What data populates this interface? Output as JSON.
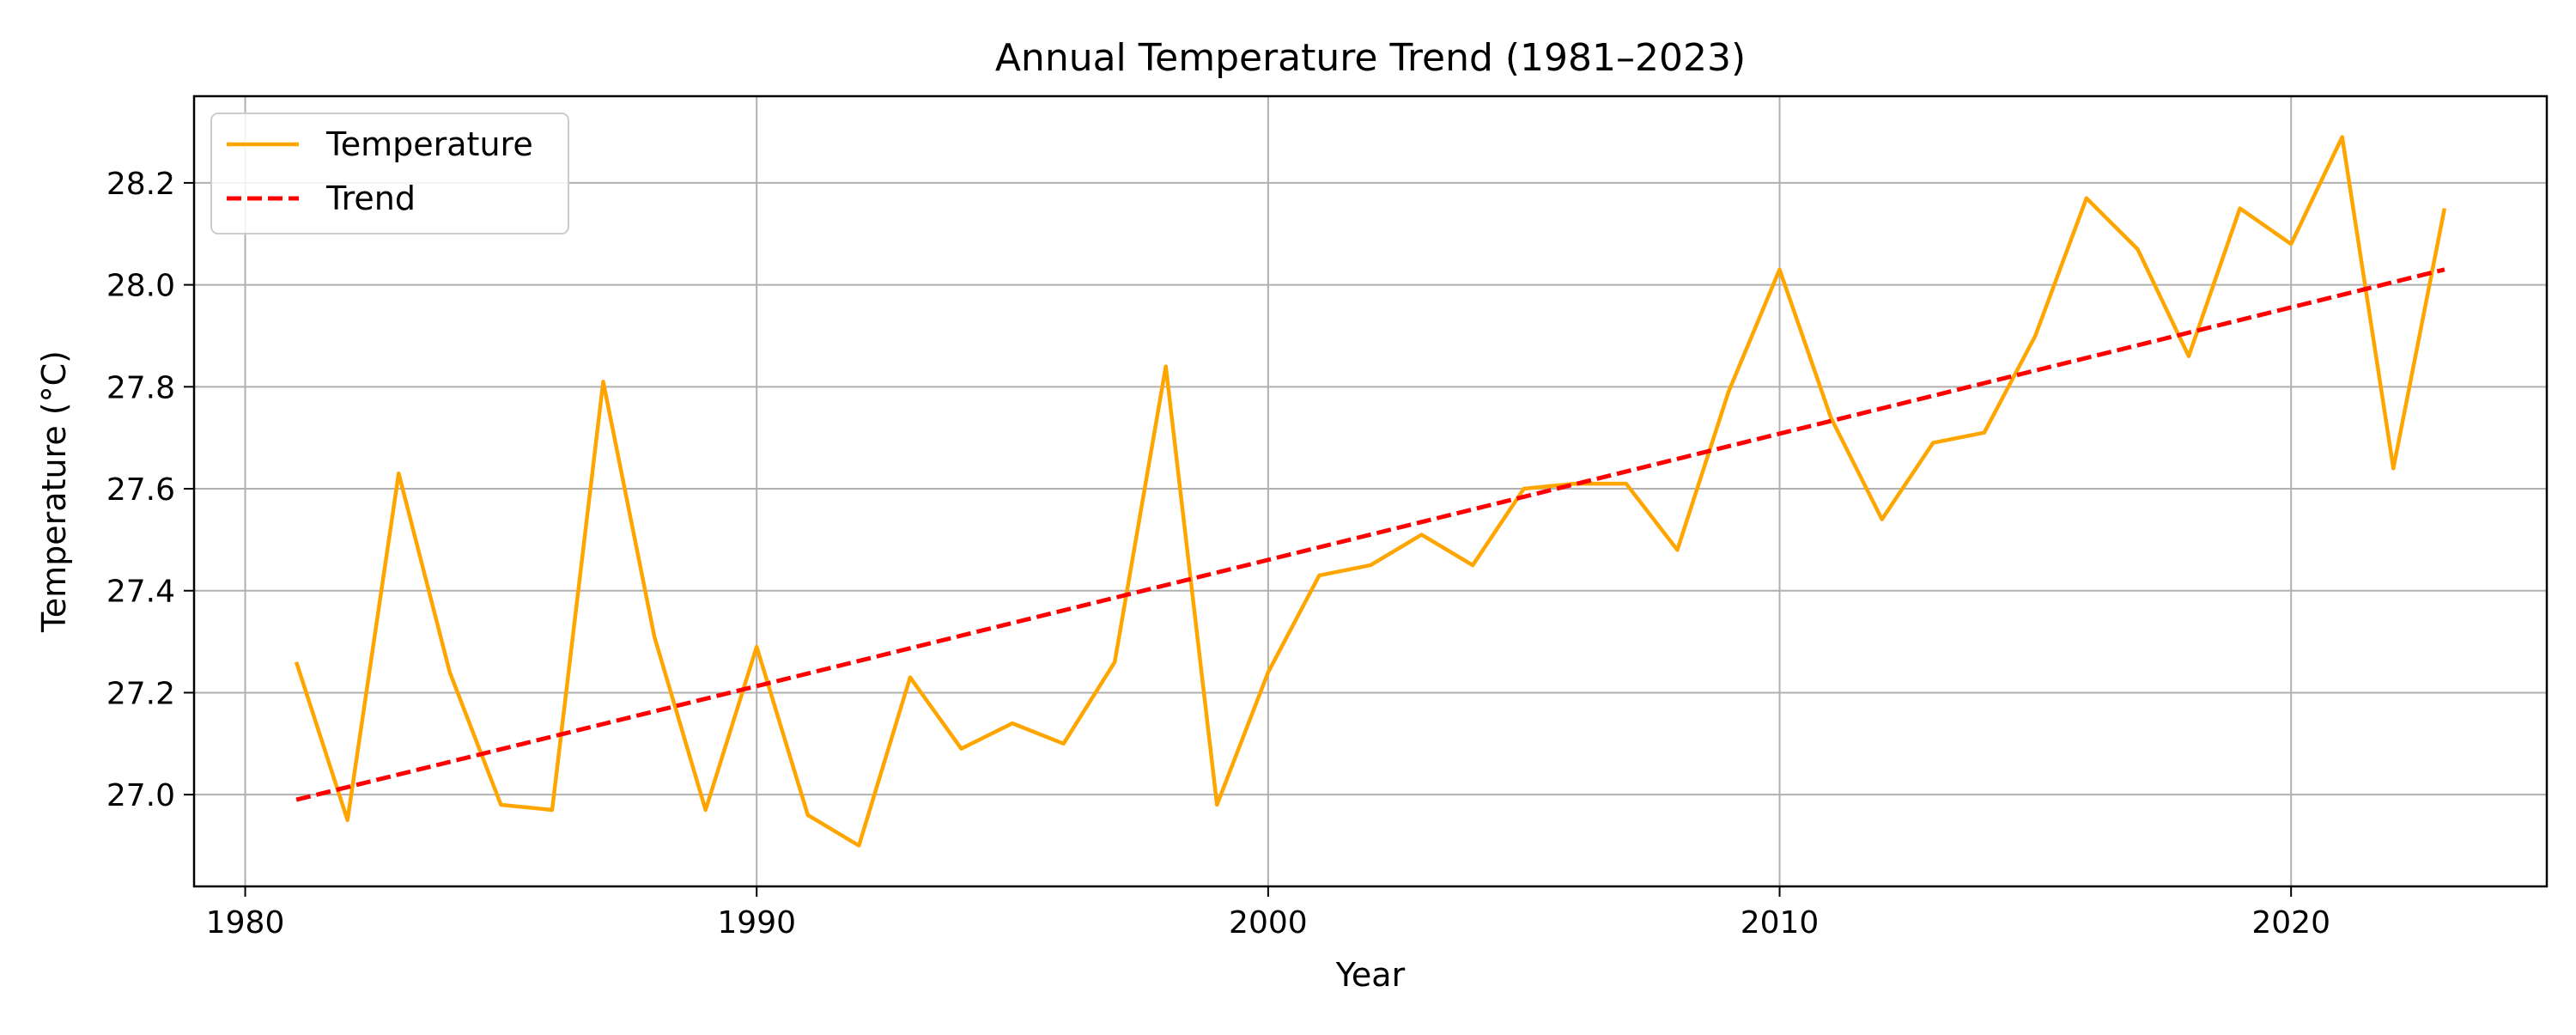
{
  "chart_data": {
    "type": "line",
    "title": "Annual Temperature Trend (1981–2023)",
    "xlabel": "Year",
    "ylabel": "Temperature (°C)",
    "xlim": [
      1979,
      2025
    ],
    "ylim": [
      26.82,
      28.37
    ],
    "xticks": [
      1980,
      1990,
      2000,
      2010,
      2020
    ],
    "xtick_labels": [
      "1980",
      "1990",
      "2000",
      "2010",
      "2020"
    ],
    "yticks": [
      27.0,
      27.2,
      27.4,
      27.6,
      27.8,
      28.0,
      28.2
    ],
    "ytick_labels": [
      "27.0",
      "27.2",
      "27.4",
      "27.6",
      "27.8",
      "28.0",
      "28.2"
    ],
    "grid": true,
    "legend_position": "top-left",
    "x": [
      1981,
      1982,
      1983,
      1984,
      1985,
      1986,
      1987,
      1988,
      1989,
      1990,
      1991,
      1992,
      1993,
      1994,
      1995,
      1996,
      1997,
      1998,
      1999,
      2000,
      2001,
      2002,
      2003,
      2004,
      2005,
      2006,
      2007,
      2008,
      2009,
      2010,
      2011,
      2012,
      2013,
      2014,
      2015,
      2016,
      2017,
      2018,
      2019,
      2020,
      2021,
      2022,
      2023
    ],
    "series": [
      {
        "name": "Temperature",
        "color": "#FFA500",
        "style": "solid",
        "values": [
          27.26,
          26.95,
          27.63,
          27.24,
          26.98,
          26.97,
          27.81,
          27.31,
          26.97,
          27.29,
          26.96,
          26.9,
          27.23,
          27.09,
          27.14,
          27.1,
          27.26,
          27.84,
          26.98,
          27.24,
          27.43,
          27.45,
          27.51,
          27.45,
          27.6,
          27.61,
          27.61,
          27.48,
          27.79,
          28.03,
          27.74,
          27.54,
          27.69,
          27.71,
          27.9,
          28.17,
          28.07,
          27.86,
          28.15,
          28.08,
          28.29,
          27.64,
          28.15
        ]
      },
      {
        "name": "Trend",
        "color": "#FF0000",
        "style": "dashed",
        "values": [
          26.99,
          28.03
        ],
        "x": [
          1981,
          2023
        ]
      }
    ]
  }
}
